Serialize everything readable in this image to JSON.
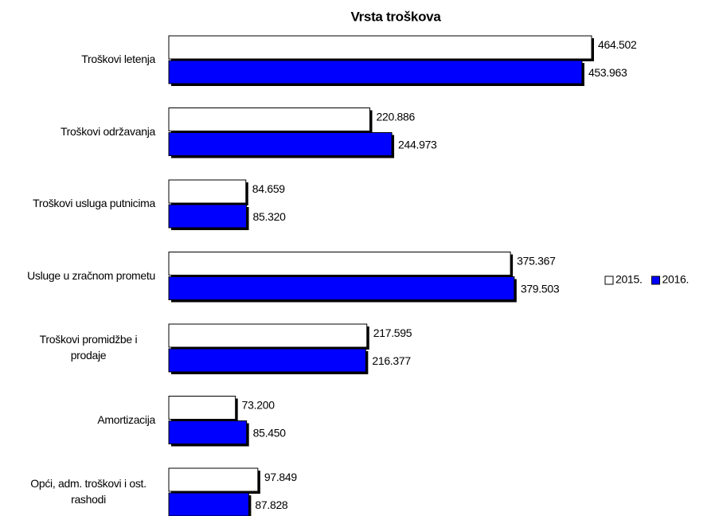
{
  "chart_data": {
    "type": "bar",
    "orientation": "horizontal",
    "title": "Vrsta troškova",
    "categories": [
      "Troškovi letenja",
      "Troškovi održavanja",
      "Troškovi usluga putnicima",
      "Usluge u zračnom prometu",
      "Troškovi promidžbe i prodaje",
      "Amortizacija",
      "Opći, adm. troškovi i ost. rashodi"
    ],
    "series": [
      {
        "name": "2015.",
        "color": "#ffffff",
        "values": [
          464502,
          220886,
          84659,
          375367,
          217595,
          73200,
          97849
        ],
        "value_labels": [
          "464.502",
          "220.886",
          "84.659",
          "375.367",
          "217.595",
          "73.200",
          "97.849"
        ]
      },
      {
        "name": "2016.",
        "color": "#0000ff",
        "values": [
          453963,
          244973,
          85320,
          379503,
          216377,
          85450,
          87828
        ],
        "value_labels": [
          "453.963",
          "244.973",
          "85.320",
          "379.503",
          "216.377",
          "85.450",
          "87.828"
        ]
      }
    ],
    "legend": "right"
  }
}
